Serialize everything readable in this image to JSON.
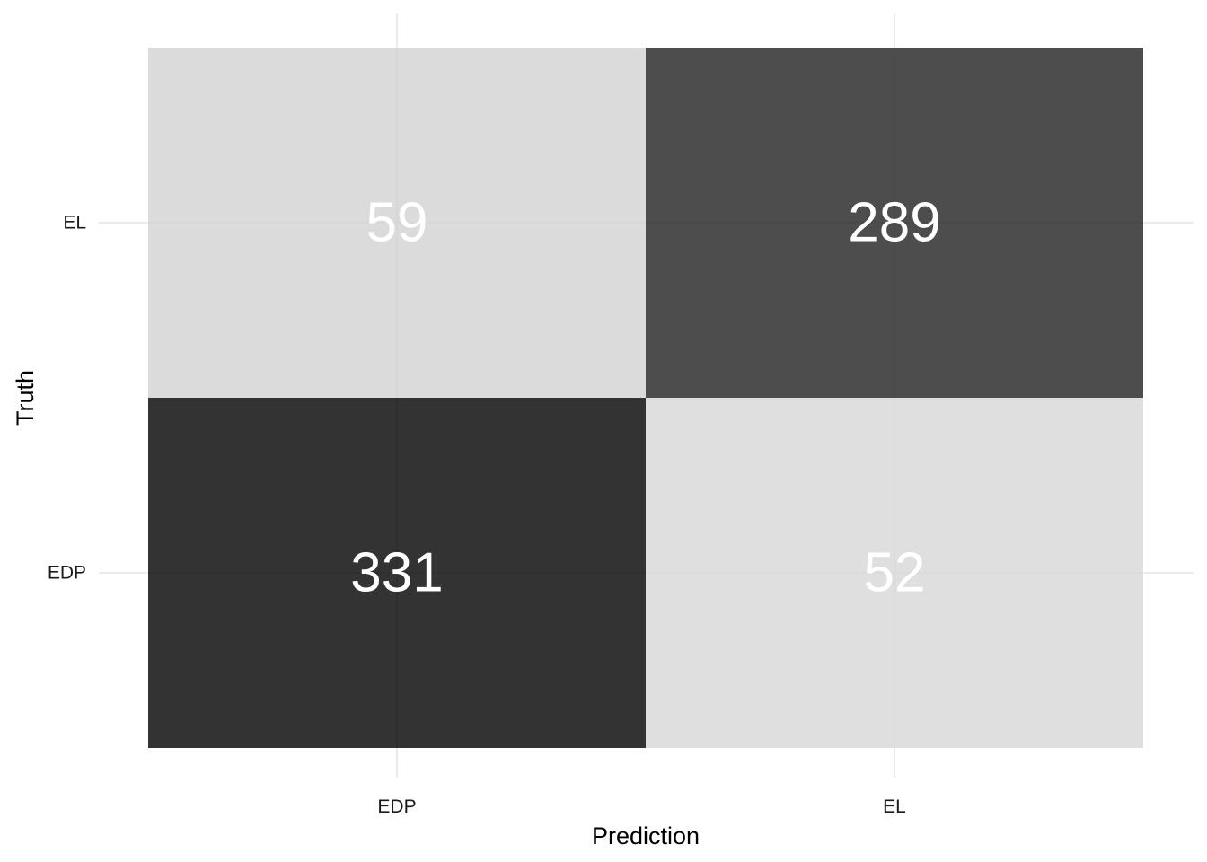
{
  "chart_data": {
    "type": "heatmap",
    "title": "",
    "xlabel": "Prediction",
    "ylabel": "Truth",
    "x_categories": [
      "EDP",
      "EL"
    ],
    "y_categories": [
      "EDP",
      "EL"
    ],
    "cells": [
      {
        "prediction": "EDP",
        "truth": "EL",
        "value": 59
      },
      {
        "prediction": "EL",
        "truth": "EL",
        "value": 289
      },
      {
        "prediction": "EDP",
        "truth": "EDP",
        "value": 331
      },
      {
        "prediction": "EL",
        "truth": "EDP",
        "value": 52
      }
    ],
    "value_range": [
      0,
      331
    ],
    "color_low": "#ffffff",
    "color_high": "#000000",
    "cell_alpha": 0.8,
    "label_color": "#ffffff",
    "grid": true,
    "legend": "none"
  }
}
